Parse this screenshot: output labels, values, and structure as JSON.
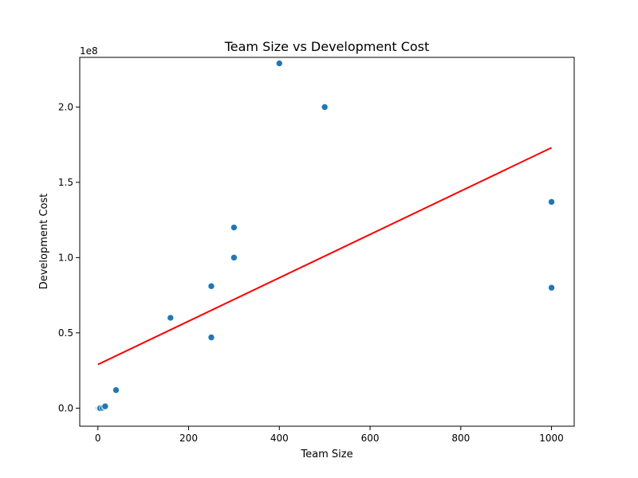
{
  "chart_data": {
    "type": "scatter",
    "title": "Team Size vs Development Cost",
    "xlabel": "Team Size",
    "ylabel": "Development Cost",
    "y_exponent_label": "1e8",
    "xlim": [
      -40,
      1050
    ],
    "ylim": [
      -0.12,
      2.33
    ],
    "x_ticks": [
      0,
      200,
      400,
      600,
      800,
      1000
    ],
    "x_tick_labels": [
      "0",
      "200",
      "400",
      "600",
      "800",
      "1000"
    ],
    "y_ticks": [
      0.0,
      0.5,
      1.0,
      1.5,
      2.0
    ],
    "y_tick_labels": [
      "0.0",
      "0.5",
      "1.0",
      "1.5",
      "2.0"
    ],
    "grid": false,
    "legend": "none",
    "points": [
      {
        "x": 1,
        "y": 0.0
      },
      {
        "x": 2,
        "y": 0.0
      },
      {
        "x": 3,
        "y": 0.0
      },
      {
        "x": 4,
        "y": 0.001
      },
      {
        "x": 5,
        "y": 0.0
      },
      {
        "x": 10,
        "y": 0.002
      },
      {
        "x": 14,
        "y": 0.01
      },
      {
        "x": 16,
        "y": 0.012
      },
      {
        "x": 40,
        "y": 0.12
      },
      {
        "x": 160,
        "y": 0.6
      },
      {
        "x": 250,
        "y": 0.81
      },
      {
        "x": 250,
        "y": 0.47
      },
      {
        "x": 300,
        "y": 1.2
      },
      {
        "x": 300,
        "y": 1.0
      },
      {
        "x": 400,
        "y": 2.29
      },
      {
        "x": 500,
        "y": 2.0
      },
      {
        "x": 1000,
        "y": 1.37
      },
      {
        "x": 1000,
        "y": 0.8
      }
    ],
    "trend_line": {
      "x": [
        0,
        1000
      ],
      "y": [
        0.29,
        1.73
      ]
    },
    "colors": {
      "points": "#1f77b4",
      "trend_line": "#ff0000"
    }
  }
}
